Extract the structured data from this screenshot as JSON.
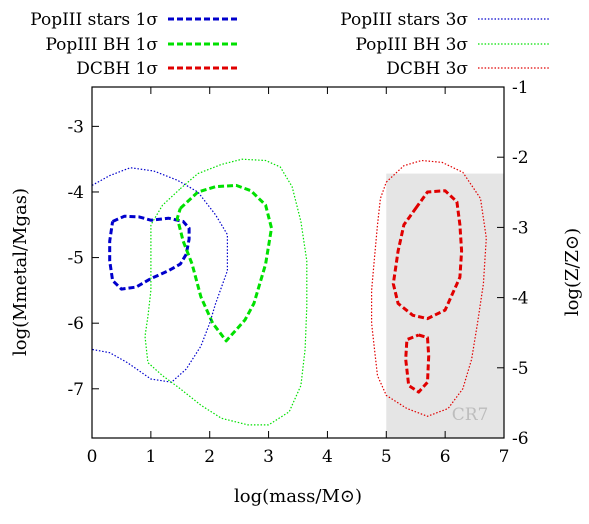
{
  "chart_data": {
    "type": "line",
    "xlabel": "log(mass/M⊙)",
    "ylabel_left": "log(Mmetal/Mgas)",
    "ylabel_right": "log(Z/Z⊙)",
    "xlim": [
      0,
      7
    ],
    "ylim": [
      -7.75,
      -2.4
    ],
    "ylim_right": [
      -6,
      -1
    ],
    "x_ticks": [
      "0",
      "1",
      "2",
      "3",
      "4",
      "5",
      "6",
      "7"
    ],
    "y_ticks_left": [
      "-3",
      "-4",
      "-5",
      "-6",
      "-7"
    ],
    "y_ticks_right": [
      "-1",
      "-2",
      "-3",
      "-4",
      "-5",
      "-6"
    ],
    "legend_position": "top",
    "shaded_region": {
      "label": "CR7",
      "x": [
        5.0,
        7.0
      ],
      "y": [
        -7.75,
        -3.72
      ],
      "color": "#e5e5e5"
    },
    "series": [
      {
        "name": "PopIII stars 1σ",
        "color": "#0000cc",
        "style": "dash",
        "points": [
          [
            0.35,
            -4.45
          ],
          [
            0.55,
            -4.37
          ],
          [
            0.8,
            -4.38
          ],
          [
            1.0,
            -4.43
          ],
          [
            1.3,
            -4.4
          ],
          [
            1.55,
            -4.45
          ],
          [
            1.65,
            -4.55
          ],
          [
            1.65,
            -4.72
          ],
          [
            1.6,
            -4.95
          ],
          [
            1.5,
            -5.1
          ],
          [
            1.3,
            -5.2
          ],
          [
            1.0,
            -5.32
          ],
          [
            0.75,
            -5.45
          ],
          [
            0.5,
            -5.48
          ],
          [
            0.35,
            -5.35
          ],
          [
            0.3,
            -5.05
          ],
          [
            0.3,
            -4.75
          ],
          [
            0.35,
            -4.45
          ]
        ]
      },
      {
        "name": "PopIII BH 1σ",
        "color": "#00e000",
        "style": "dash",
        "points": [
          [
            1.5,
            -4.25
          ],
          [
            1.8,
            -4.0
          ],
          [
            2.1,
            -3.92
          ],
          [
            2.45,
            -3.9
          ],
          [
            2.7,
            -3.98
          ],
          [
            2.95,
            -4.2
          ],
          [
            3.05,
            -4.55
          ],
          [
            2.95,
            -5.1
          ],
          [
            2.75,
            -5.7
          ],
          [
            2.6,
            -5.95
          ],
          [
            2.4,
            -6.15
          ],
          [
            2.28,
            -6.27
          ],
          [
            2.05,
            -6.0
          ],
          [
            1.85,
            -5.6
          ],
          [
            1.7,
            -5.1
          ],
          [
            1.55,
            -4.75
          ],
          [
            1.45,
            -4.4
          ],
          [
            1.5,
            -4.25
          ]
        ]
      },
      {
        "name": "DCBH 1σ",
        "color": "#e00000",
        "style": "dash",
        "points": [
          [
            5.5,
            -4.25
          ],
          [
            5.7,
            -4.0
          ],
          [
            6.0,
            -3.98
          ],
          [
            6.2,
            -4.15
          ],
          [
            6.25,
            -4.5
          ],
          [
            6.28,
            -4.9
          ],
          [
            6.25,
            -5.3
          ],
          [
            6.0,
            -5.8
          ],
          [
            5.7,
            -5.93
          ],
          [
            5.45,
            -5.88
          ],
          [
            5.2,
            -5.7
          ],
          [
            5.12,
            -5.4
          ],
          [
            5.2,
            -4.9
          ],
          [
            5.3,
            -4.5
          ],
          [
            5.5,
            -4.25
          ]
        ]
      },
      {
        "name": "DCBH 1σ",
        "color": "#e00000",
        "style": "dash",
        "points": [
          [
            5.55,
            -6.18
          ],
          [
            5.7,
            -6.22
          ],
          [
            5.72,
            -6.5
          ],
          [
            5.7,
            -6.9
          ],
          [
            5.55,
            -7.05
          ],
          [
            5.38,
            -6.95
          ],
          [
            5.33,
            -6.55
          ],
          [
            5.35,
            -6.25
          ],
          [
            5.55,
            -6.18
          ]
        ]
      },
      {
        "name": "PopIII stars 3σ",
        "color": "#0000cc",
        "style": "dot",
        "points": [
          [
            0.0,
            -3.9
          ],
          [
            0.3,
            -3.75
          ],
          [
            0.65,
            -3.63
          ],
          [
            1.05,
            -3.68
          ],
          [
            1.45,
            -3.82
          ],
          [
            1.8,
            -4.0
          ],
          [
            2.1,
            -4.35
          ],
          [
            2.3,
            -4.65
          ],
          [
            2.3,
            -5.2
          ],
          [
            2.1,
            -5.7
          ],
          [
            2.0,
            -6.0
          ],
          [
            1.85,
            -6.35
          ],
          [
            1.6,
            -6.7
          ],
          [
            1.35,
            -6.9
          ],
          [
            1.0,
            -6.85
          ],
          [
            0.6,
            -6.6
          ],
          [
            0.3,
            -6.45
          ],
          [
            0.0,
            -6.4
          ]
        ]
      },
      {
        "name": "PopIII BH 3σ",
        "color": "#00e000",
        "style": "dot",
        "points": [
          [
            1.5,
            -3.95
          ],
          [
            1.8,
            -3.72
          ],
          [
            2.2,
            -3.58
          ],
          [
            2.55,
            -3.5
          ],
          [
            2.95,
            -3.52
          ],
          [
            3.2,
            -3.62
          ],
          [
            3.4,
            -3.92
          ],
          [
            3.55,
            -4.45
          ],
          [
            3.65,
            -5.05
          ],
          [
            3.65,
            -5.75
          ],
          [
            3.62,
            -6.4
          ],
          [
            3.55,
            -6.95
          ],
          [
            3.35,
            -7.35
          ],
          [
            3.0,
            -7.55
          ],
          [
            2.65,
            -7.55
          ],
          [
            2.2,
            -7.45
          ],
          [
            1.85,
            -7.25
          ],
          [
            1.5,
            -7.0
          ],
          [
            1.2,
            -6.8
          ],
          [
            0.95,
            -6.6
          ],
          [
            0.9,
            -6.2
          ],
          [
            0.95,
            -5.9
          ],
          [
            1.0,
            -5.5
          ],
          [
            1.0,
            -5.0
          ],
          [
            1.0,
            -4.5
          ],
          [
            1.2,
            -4.2
          ],
          [
            1.5,
            -3.95
          ]
        ]
      },
      {
        "name": "DCBH 3σ",
        "color": "#e00000",
        "style": "dot",
        "points": [
          [
            5.0,
            -3.85
          ],
          [
            5.3,
            -3.6
          ],
          [
            5.6,
            -3.52
          ],
          [
            5.95,
            -3.55
          ],
          [
            6.3,
            -3.7
          ],
          [
            6.6,
            -4.1
          ],
          [
            6.7,
            -4.7
          ],
          [
            6.65,
            -5.4
          ],
          [
            6.55,
            -6.0
          ],
          [
            6.45,
            -6.55
          ],
          [
            6.3,
            -7.0
          ],
          [
            6.05,
            -7.3
          ],
          [
            5.7,
            -7.42
          ],
          [
            5.35,
            -7.3
          ],
          [
            5.0,
            -7.1
          ],
          [
            4.85,
            -6.8
          ],
          [
            4.8,
            -6.4
          ],
          [
            4.75,
            -6.0
          ],
          [
            4.75,
            -5.5
          ],
          [
            4.8,
            -5.0
          ],
          [
            4.85,
            -4.5
          ],
          [
            4.9,
            -4.1
          ],
          [
            5.0,
            -3.85
          ]
        ]
      }
    ]
  },
  "legend": {
    "left": [
      {
        "label": "PopIII stars 1σ",
        "color": "#0000cc",
        "style": "dash"
      },
      {
        "label": "PopIII BH 1σ",
        "color": "#00e000",
        "style": "dash"
      },
      {
        "label": "DCBH 1σ",
        "color": "#e00000",
        "style": "dash"
      }
    ],
    "right": [
      {
        "label": "PopIII stars 3σ",
        "color": "#0000cc",
        "style": "dot"
      },
      {
        "label": "PopIII BH 3σ",
        "color": "#00e000",
        "style": "dot"
      },
      {
        "label": "DCBH 3σ",
        "color": "#e00000",
        "style": "dot"
      }
    ]
  }
}
